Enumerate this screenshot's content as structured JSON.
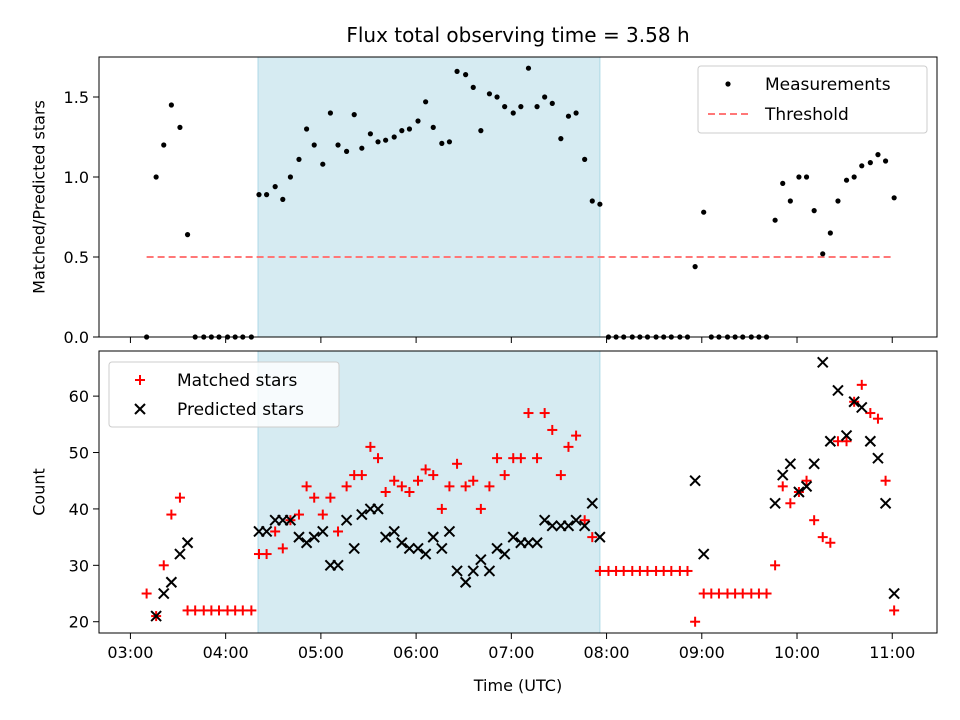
{
  "colors": {
    "shade": "#add8e6",
    "measurement": "#000000",
    "threshold": "#ff7777",
    "matched": "#ff0000",
    "predicted": "#000000"
  },
  "chart_data": [
    {
      "type": "scatter",
      "title": "Flux total observing time = 3.58 h",
      "xlabel": "",
      "ylabel": "Matched/Predicted stars",
      "xlim": [
        2.67,
        11.47
      ],
      "ylim": [
        0,
        1.75
      ],
      "yticks": [
        0.0,
        0.5,
        1.0,
        1.5
      ],
      "ytick_labels": [
        "0.0",
        "0.5",
        "1.0",
        "1.5"
      ],
      "shaded_region": [
        4.34,
        7.93
      ],
      "legend": {
        "position": "top-right",
        "entries": [
          "Measurements",
          "Threshold"
        ]
      },
      "series": [
        {
          "name": "Measurements",
          "style": "dots",
          "x": [
            3.17,
            3.27,
            3.35,
            3.43,
            3.52,
            3.6,
            3.68,
            3.77,
            3.85,
            3.93,
            4.02,
            4.1,
            4.18,
            4.27,
            4.35,
            4.43,
            4.52,
            4.6,
            4.68,
            4.77,
            4.85,
            4.93,
            5.02,
            5.1,
            5.18,
            5.27,
            5.35,
            5.43,
            5.52,
            5.6,
            5.68,
            5.77,
            5.85,
            5.93,
            6.02,
            6.1,
            6.18,
            6.27,
            6.35,
            6.43,
            6.52,
            6.6,
            6.68,
            6.77,
            6.85,
            6.93,
            7.02,
            7.1,
            7.18,
            7.27,
            7.35,
            7.43,
            7.52,
            7.6,
            7.68,
            7.77,
            7.85,
            7.93,
            8.02,
            8.1,
            8.18,
            8.27,
            8.35,
            8.43,
            8.52,
            8.6,
            8.68,
            8.77,
            8.85,
            8.93,
            9.02,
            9.1,
            9.18,
            9.27,
            9.35,
            9.43,
            9.52,
            9.6,
            9.68,
            9.77,
            9.85,
            9.93,
            10.02,
            10.1,
            10.18,
            10.27,
            10.35,
            10.43,
            10.52,
            10.6,
            10.68,
            10.77,
            10.85,
            10.93,
            11.02
          ],
          "y": [
            0,
            1.0,
            1.2,
            1.45,
            1.31,
            0.64,
            0,
            0,
            0,
            0,
            0,
            0,
            0,
            0,
            0.89,
            0.89,
            0.94,
            0.86,
            1.0,
            1.11,
            1.3,
            1.2,
            1.08,
            1.4,
            1.2,
            1.16,
            1.39,
            1.18,
            1.27,
            1.22,
            1.23,
            1.25,
            1.29,
            1.3,
            1.35,
            1.47,
            1.31,
            1.21,
            1.22,
            1.66,
            1.64,
            1.56,
            1.29,
            1.52,
            1.5,
            1.44,
            1.4,
            1.44,
            1.68,
            1.44,
            1.5,
            1.46,
            1.24,
            1.38,
            1.4,
            1.11,
            0.85,
            0.83,
            0,
            0,
            0,
            0,
            0,
            0,
            0,
            0,
            0,
            0,
            0,
            0.44,
            0.78,
            0,
            0,
            0,
            0,
            0,
            0,
            0,
            0,
            0.73,
            0.96,
            0.85,
            1.0,
            1.0,
            0.79,
            0.52,
            0.65,
            0.85,
            0.98,
            1.0,
            1.07,
            1.09,
            1.14,
            1.1,
            0.87
          ]
        },
        {
          "name": "Threshold",
          "style": "dashed-line",
          "x": [
            3.17,
            11.02
          ],
          "y": [
            0.5,
            0.5
          ]
        }
      ]
    },
    {
      "type": "scatter",
      "title": "",
      "xlabel": "Time (UTC)",
      "ylabel": "Count",
      "xlim": [
        2.67,
        11.47
      ],
      "ylim": [
        18,
        68
      ],
      "yticks": [
        20,
        30,
        40,
        50,
        60
      ],
      "ytick_labels": [
        "20",
        "30",
        "40",
        "50",
        "60"
      ],
      "xticks": [
        3,
        4,
        5,
        6,
        7,
        8,
        9,
        10,
        11
      ],
      "xtick_labels": [
        "03:00",
        "04:00",
        "05:00",
        "06:00",
        "07:00",
        "08:00",
        "09:00",
        "10:00",
        "11:00"
      ],
      "shaded_region": [
        4.34,
        7.93
      ],
      "legend": {
        "position": "top-left",
        "entries": [
          "Matched stars",
          "Predicted stars"
        ]
      },
      "series": [
        {
          "name": "Matched stars",
          "marker": "plus",
          "x": [
            3.17,
            3.27,
            3.35,
            3.43,
            3.52,
            3.6,
            3.68,
            3.77,
            3.85,
            3.93,
            4.02,
            4.1,
            4.18,
            4.27,
            4.35,
            4.43,
            4.52,
            4.6,
            4.68,
            4.77,
            4.85,
            4.93,
            5.02,
            5.1,
            5.18,
            5.27,
            5.35,
            5.43,
            5.52,
            5.6,
            5.68,
            5.77,
            5.85,
            5.93,
            6.02,
            6.1,
            6.18,
            6.27,
            6.35,
            6.43,
            6.52,
            6.6,
            6.68,
            6.77,
            6.85,
            6.93,
            7.02,
            7.1,
            7.18,
            7.27,
            7.35,
            7.43,
            7.52,
            7.6,
            7.68,
            7.77,
            7.85,
            7.93,
            8.02,
            8.1,
            8.18,
            8.27,
            8.35,
            8.43,
            8.52,
            8.6,
            8.68,
            8.77,
            8.85,
            8.93,
            9.02,
            9.1,
            9.18,
            9.27,
            9.35,
            9.43,
            9.52,
            9.6,
            9.68,
            9.77,
            9.85,
            9.93,
            10.02,
            10.1,
            10.18,
            10.27,
            10.35,
            10.43,
            10.52,
            10.6,
            10.68,
            10.77,
            10.85,
            10.93,
            11.02
          ],
          "y": [
            25,
            21,
            30,
            39,
            42,
            22,
            22,
            22,
            22,
            22,
            22,
            22,
            22,
            22,
            32,
            32,
            36,
            33,
            38,
            39,
            44,
            42,
            39,
            42,
            36,
            44,
            46,
            46,
            51,
            49,
            43,
            45,
            44,
            43,
            45,
            47,
            46,
            40,
            44,
            48,
            44,
            45,
            40,
            44,
            49,
            46,
            49,
            49,
            57,
            49,
            57,
            54,
            46,
            51,
            53,
            38,
            35,
            29,
            29,
            29,
            29,
            29,
            29,
            29,
            29,
            29,
            29,
            29,
            29,
            20,
            25,
            25,
            25,
            25,
            25,
            25,
            25,
            25,
            25,
            30,
            44,
            41,
            43,
            45,
            38,
            35,
            34,
            52,
            52,
            59,
            62,
            57,
            56,
            45,
            22
          ]
        },
        {
          "name": "Predicted stars",
          "marker": "x",
          "x": [
            3.27,
            3.35,
            3.43,
            3.52,
            3.6,
            4.35,
            4.43,
            4.52,
            4.6,
            4.68,
            4.77,
            4.85,
            4.93,
            5.02,
            5.1,
            5.18,
            5.27,
            5.35,
            5.43,
            5.52,
            5.6,
            5.68,
            5.77,
            5.85,
            5.93,
            6.02,
            6.1,
            6.18,
            6.27,
            6.35,
            6.43,
            6.52,
            6.6,
            6.68,
            6.77,
            6.85,
            6.93,
            7.02,
            7.1,
            7.18,
            7.27,
            7.35,
            7.43,
            7.52,
            7.6,
            7.68,
            7.77,
            7.85,
            7.93,
            8.93,
            9.02,
            9.77,
            9.85,
            9.93,
            10.02,
            10.1,
            10.18,
            10.27,
            10.35,
            10.43,
            10.52,
            10.6,
            10.68,
            10.77,
            10.85,
            10.93,
            11.02
          ],
          "y": [
            21,
            25,
            27,
            32,
            34,
            36,
            36,
            38,
            38,
            38,
            35,
            34,
            35,
            36,
            30,
            30,
            38,
            33,
            39,
            40,
            40,
            35,
            36,
            34,
            33,
            33,
            32,
            35,
            33,
            36,
            29,
            27,
            29,
            31,
            29,
            33,
            32,
            35,
            34,
            34,
            34,
            38,
            37,
            37,
            37,
            38,
            37,
            41,
            35,
            45,
            32,
            41,
            46,
            48,
            43,
            44,
            48,
            66,
            52,
            61,
            53,
            59,
            58,
            52,
            49,
            41,
            25
          ]
        }
      ]
    }
  ]
}
